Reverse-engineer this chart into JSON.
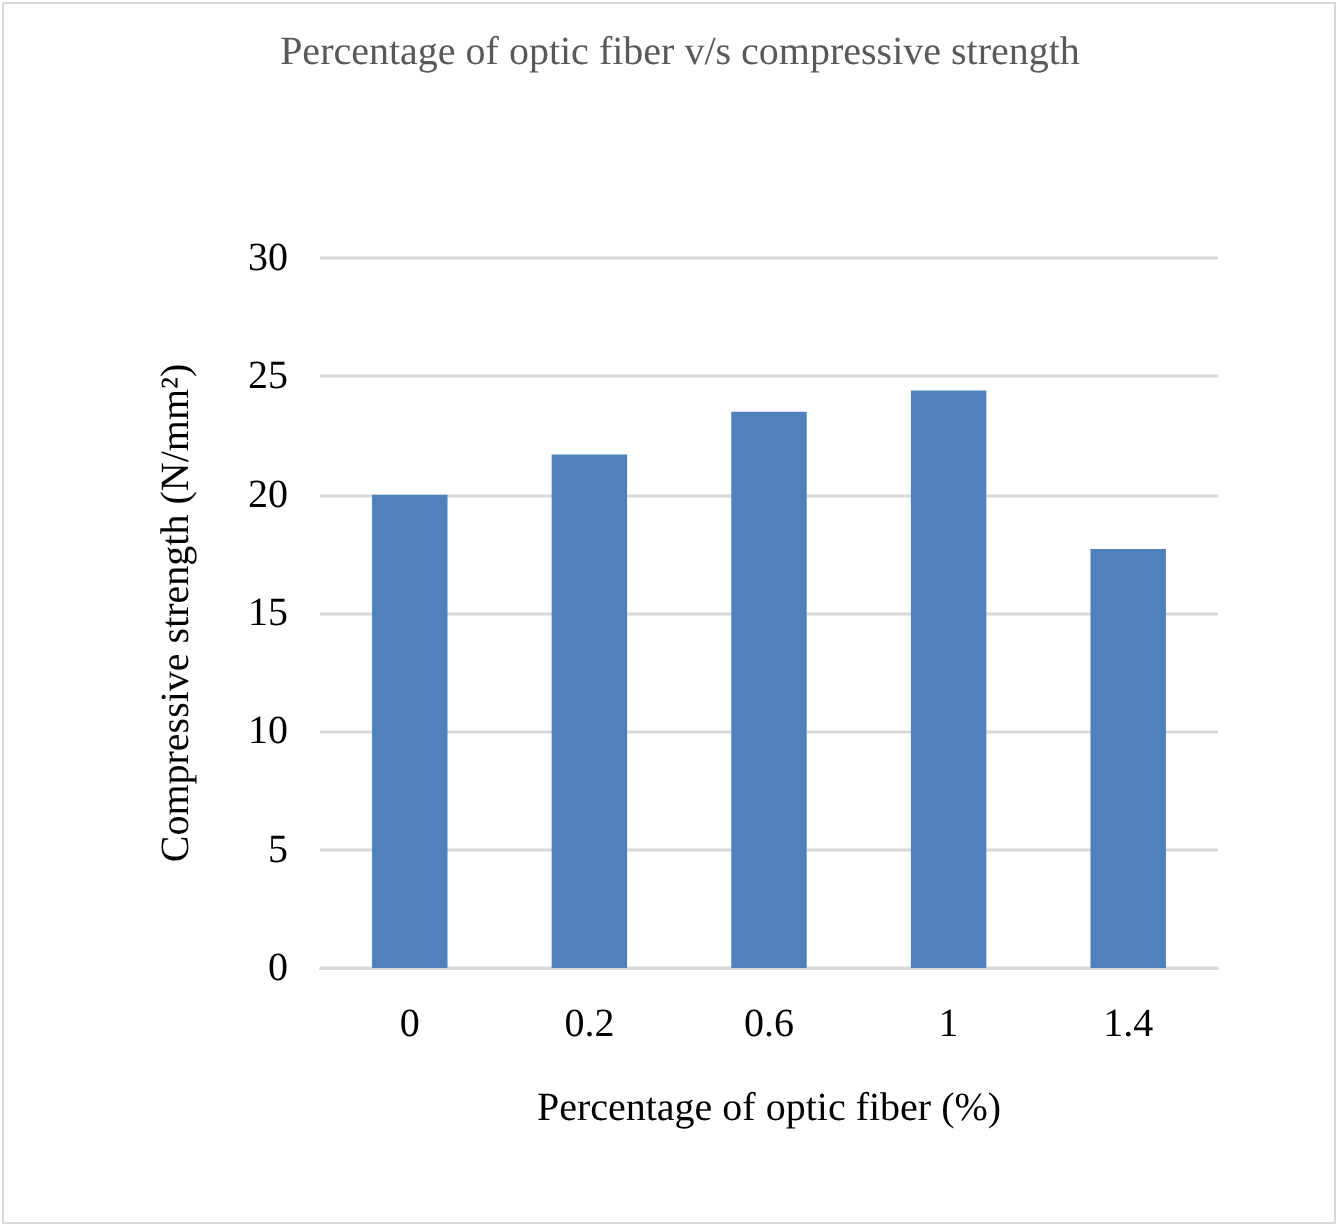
{
  "chart_data": {
    "type": "bar",
    "title": "Percentage of optic fiber v/s compressive strength",
    "xlabel": "Percentage of optic fiber (%)",
    "ylabel": "Compressive strength (N/mm²)",
    "categories": [
      "0",
      "0.2",
      "0.6",
      "1",
      "1.4"
    ],
    "values": [
      20,
      21.7,
      23.5,
      24.4,
      17.7
    ],
    "color": "#4f81bd",
    "ylim": [
      0,
      30
    ],
    "yticks": [
      0,
      5,
      10,
      15,
      20,
      25,
      30
    ],
    "grid": "y"
  }
}
